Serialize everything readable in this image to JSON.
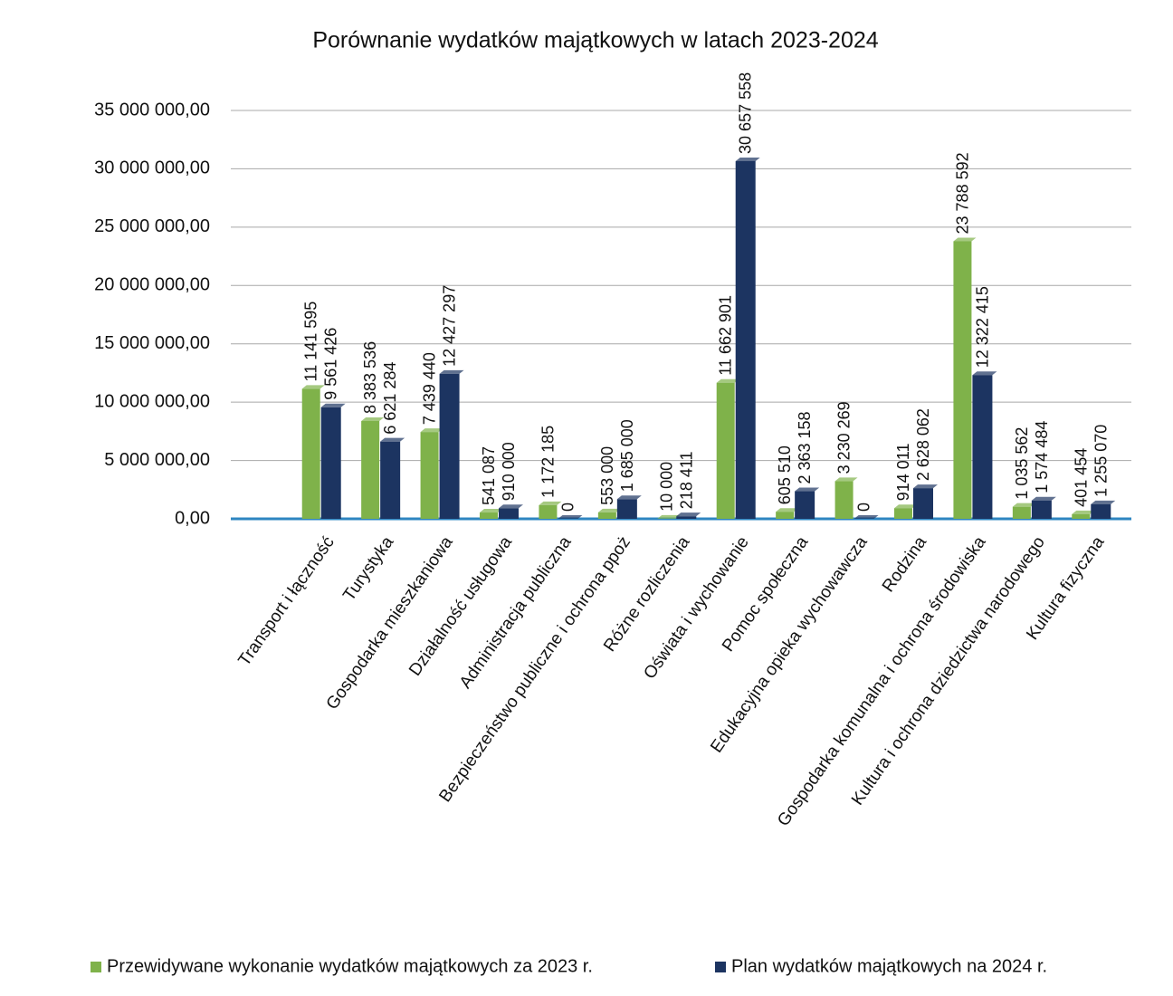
{
  "chart_data": {
    "type": "bar",
    "title": "Porównanie wydatków majątkowych w latach 2023-2024",
    "categories": [
      "Transport i łączność",
      "Turystyka",
      "Gospodarka mieszkaniowa",
      "Działalność usługowa",
      "Administracja publiczna",
      "Bezpieczeństwo publiczne i ochrona ppoż",
      "Różne rozliczenia",
      "Oświata i wychowanie",
      "Pomoc społeczna",
      "Edukacyjna opieka wychowawcza",
      "Rodzina",
      "Gospodarka komunalna i ochrona środowiska",
      "Kultura i ochrona dziedzictwa narodowego",
      "Kultura fizyczna"
    ],
    "series": [
      {
        "name": "Przewidywane wykonanie wydatków majątkowych za 2023 r.",
        "color": "#7fb24a",
        "values": [
          11141595,
          8383536,
          7439440,
          541087,
          1172185,
          553000,
          10000,
          11662901,
          605510,
          3230269,
          914011,
          23788592,
          1035562,
          401454
        ],
        "value_labels": [
          "11 141 595",
          "8 383 536",
          "7 439 440",
          "541 087",
          "1 172 185",
          "553 000",
          "10 000",
          "11 662 901",
          "605 510",
          "3 230 269",
          "914 011",
          "23 788 592",
          "1 035 562",
          "401 454"
        ]
      },
      {
        "name": "Plan wydatków majątkowych na 2024 r.",
        "color": "#1c3461",
        "values": [
          9561426,
          6621284,
          12427297,
          910000,
          0,
          1685000,
          218411,
          30657558,
          2363158,
          0,
          2628062,
          12322415,
          1574484,
          1255070
        ],
        "value_labels": [
          "9 561 426",
          "6 621 284",
          "12 427 297",
          "910 000",
          "0",
          "1 685 000",
          "218 411",
          "30 657 558",
          "2 363 158",
          "0",
          "2 628 062",
          "12 322 415",
          "1 574 484",
          "1 255 070"
        ]
      }
    ],
    "ylim": [
      0,
      35000000
    ],
    "yticks": [
      {
        "value": 0,
        "label": "0,00"
      },
      {
        "value": 5000000,
        "label": "5 000 000,00"
      },
      {
        "value": 10000000,
        "label": "10 000 000,00"
      },
      {
        "value": 15000000,
        "label": "15 000 000,00"
      },
      {
        "value": 20000000,
        "label": "20 000 000,00"
      },
      {
        "value": 25000000,
        "label": "25 000 000,00"
      },
      {
        "value": 30000000,
        "label": "30 000 000,00"
      },
      {
        "value": 35000000,
        "label": "35 000 000,00"
      }
    ],
    "grid": true,
    "legend": "bottom"
  }
}
